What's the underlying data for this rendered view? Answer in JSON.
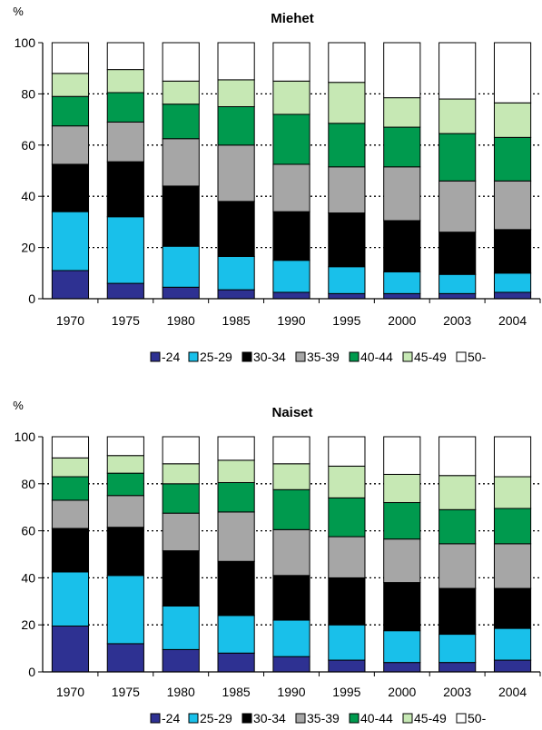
{
  "chart_data": [
    {
      "type": "bar",
      "stacked": true,
      "title": "Miehet",
      "ylabel": "%",
      "xlabel": "",
      "ylim": [
        0,
        100
      ],
      "yticks": [
        0,
        20,
        40,
        60,
        80,
        100
      ],
      "grid": "dotted horizontal",
      "legend_position": "bottom",
      "categories": [
        "1970",
        "1975",
        "1980",
        "1985",
        "1990",
        "1995",
        "2000",
        "2003",
        "2004"
      ],
      "series": [
        {
          "name": "-24",
          "color": "#2e3192",
          "values": [
            11,
            6,
            4.5,
            3.5,
            2.5,
            2,
            2,
            2,
            2.5
          ]
        },
        {
          "name": "25-29",
          "color": "#19c0ea",
          "values": [
            23,
            26,
            16,
            13,
            12.5,
            10.5,
            8.5,
            7.5,
            7.5
          ]
        },
        {
          "name": "30-34",
          "color": "#000000",
          "values": [
            18.5,
            21.5,
            23.5,
            21.5,
            19,
            21,
            20,
            16.5,
            17
          ]
        },
        {
          "name": "35-39",
          "color": "#a6a6a6",
          "values": [
            15,
            15.5,
            18.5,
            22,
            18.5,
            18,
            21,
            20,
            19
          ]
        },
        {
          "name": "40-44",
          "color": "#009a4e",
          "values": [
            11.5,
            11.5,
            13.5,
            15,
            19.5,
            17,
            15.5,
            18.5,
            17
          ]
        },
        {
          "name": "45-49",
          "color": "#c6e8b4",
          "values": [
            9,
            9,
            9,
            10.5,
            13,
            16,
            11.5,
            13.5,
            13.5
          ]
        },
        {
          "name": "50-",
          "color": "#ffffff",
          "values": [
            12,
            10.5,
            15,
            14.5,
            15,
            15.5,
            21.5,
            22,
            23.5
          ]
        }
      ]
    },
    {
      "type": "bar",
      "stacked": true,
      "title": "Naiset",
      "ylabel": "%",
      "xlabel": "",
      "ylim": [
        0,
        100
      ],
      "yticks": [
        0,
        20,
        40,
        60,
        80,
        100
      ],
      "grid": "dotted horizontal",
      "legend_position": "bottom",
      "categories": [
        "1970",
        "1975",
        "1980",
        "1985",
        "1990",
        "1995",
        "2000",
        "2003",
        "2004"
      ],
      "series": [
        {
          "name": "-24",
          "color": "#2e3192",
          "values": [
            19.5,
            12,
            9.5,
            8,
            6.5,
            5,
            4,
            4,
            5
          ]
        },
        {
          "name": "25-29",
          "color": "#19c0ea",
          "values": [
            23,
            29,
            18.5,
            16,
            15.5,
            15,
            13.5,
            12,
            13.5
          ]
        },
        {
          "name": "30-34",
          "color": "#000000",
          "values": [
            18.5,
            20.5,
            23.5,
            23,
            19,
            20,
            20.5,
            19.5,
            17
          ]
        },
        {
          "name": "35-39",
          "color": "#a6a6a6",
          "values": [
            12,
            13.5,
            16,
            21,
            19.5,
            17.5,
            18.5,
            19,
            19
          ]
        },
        {
          "name": "40-44",
          "color": "#009a4e",
          "values": [
            10,
            9.5,
            12.5,
            12.5,
            17,
            16.5,
            15.5,
            14.5,
            15
          ]
        },
        {
          "name": "45-49",
          "color": "#c6e8b4",
          "values": [
            8,
            7.5,
            8.5,
            9.5,
            11,
            13.5,
            12,
            14.5,
            13.5
          ]
        },
        {
          "name": "50-",
          "color": "#ffffff",
          "values": [
            9,
            8,
            11.5,
            10,
            11.5,
            12.5,
            16,
            16.5,
            17
          ]
        }
      ]
    }
  ]
}
